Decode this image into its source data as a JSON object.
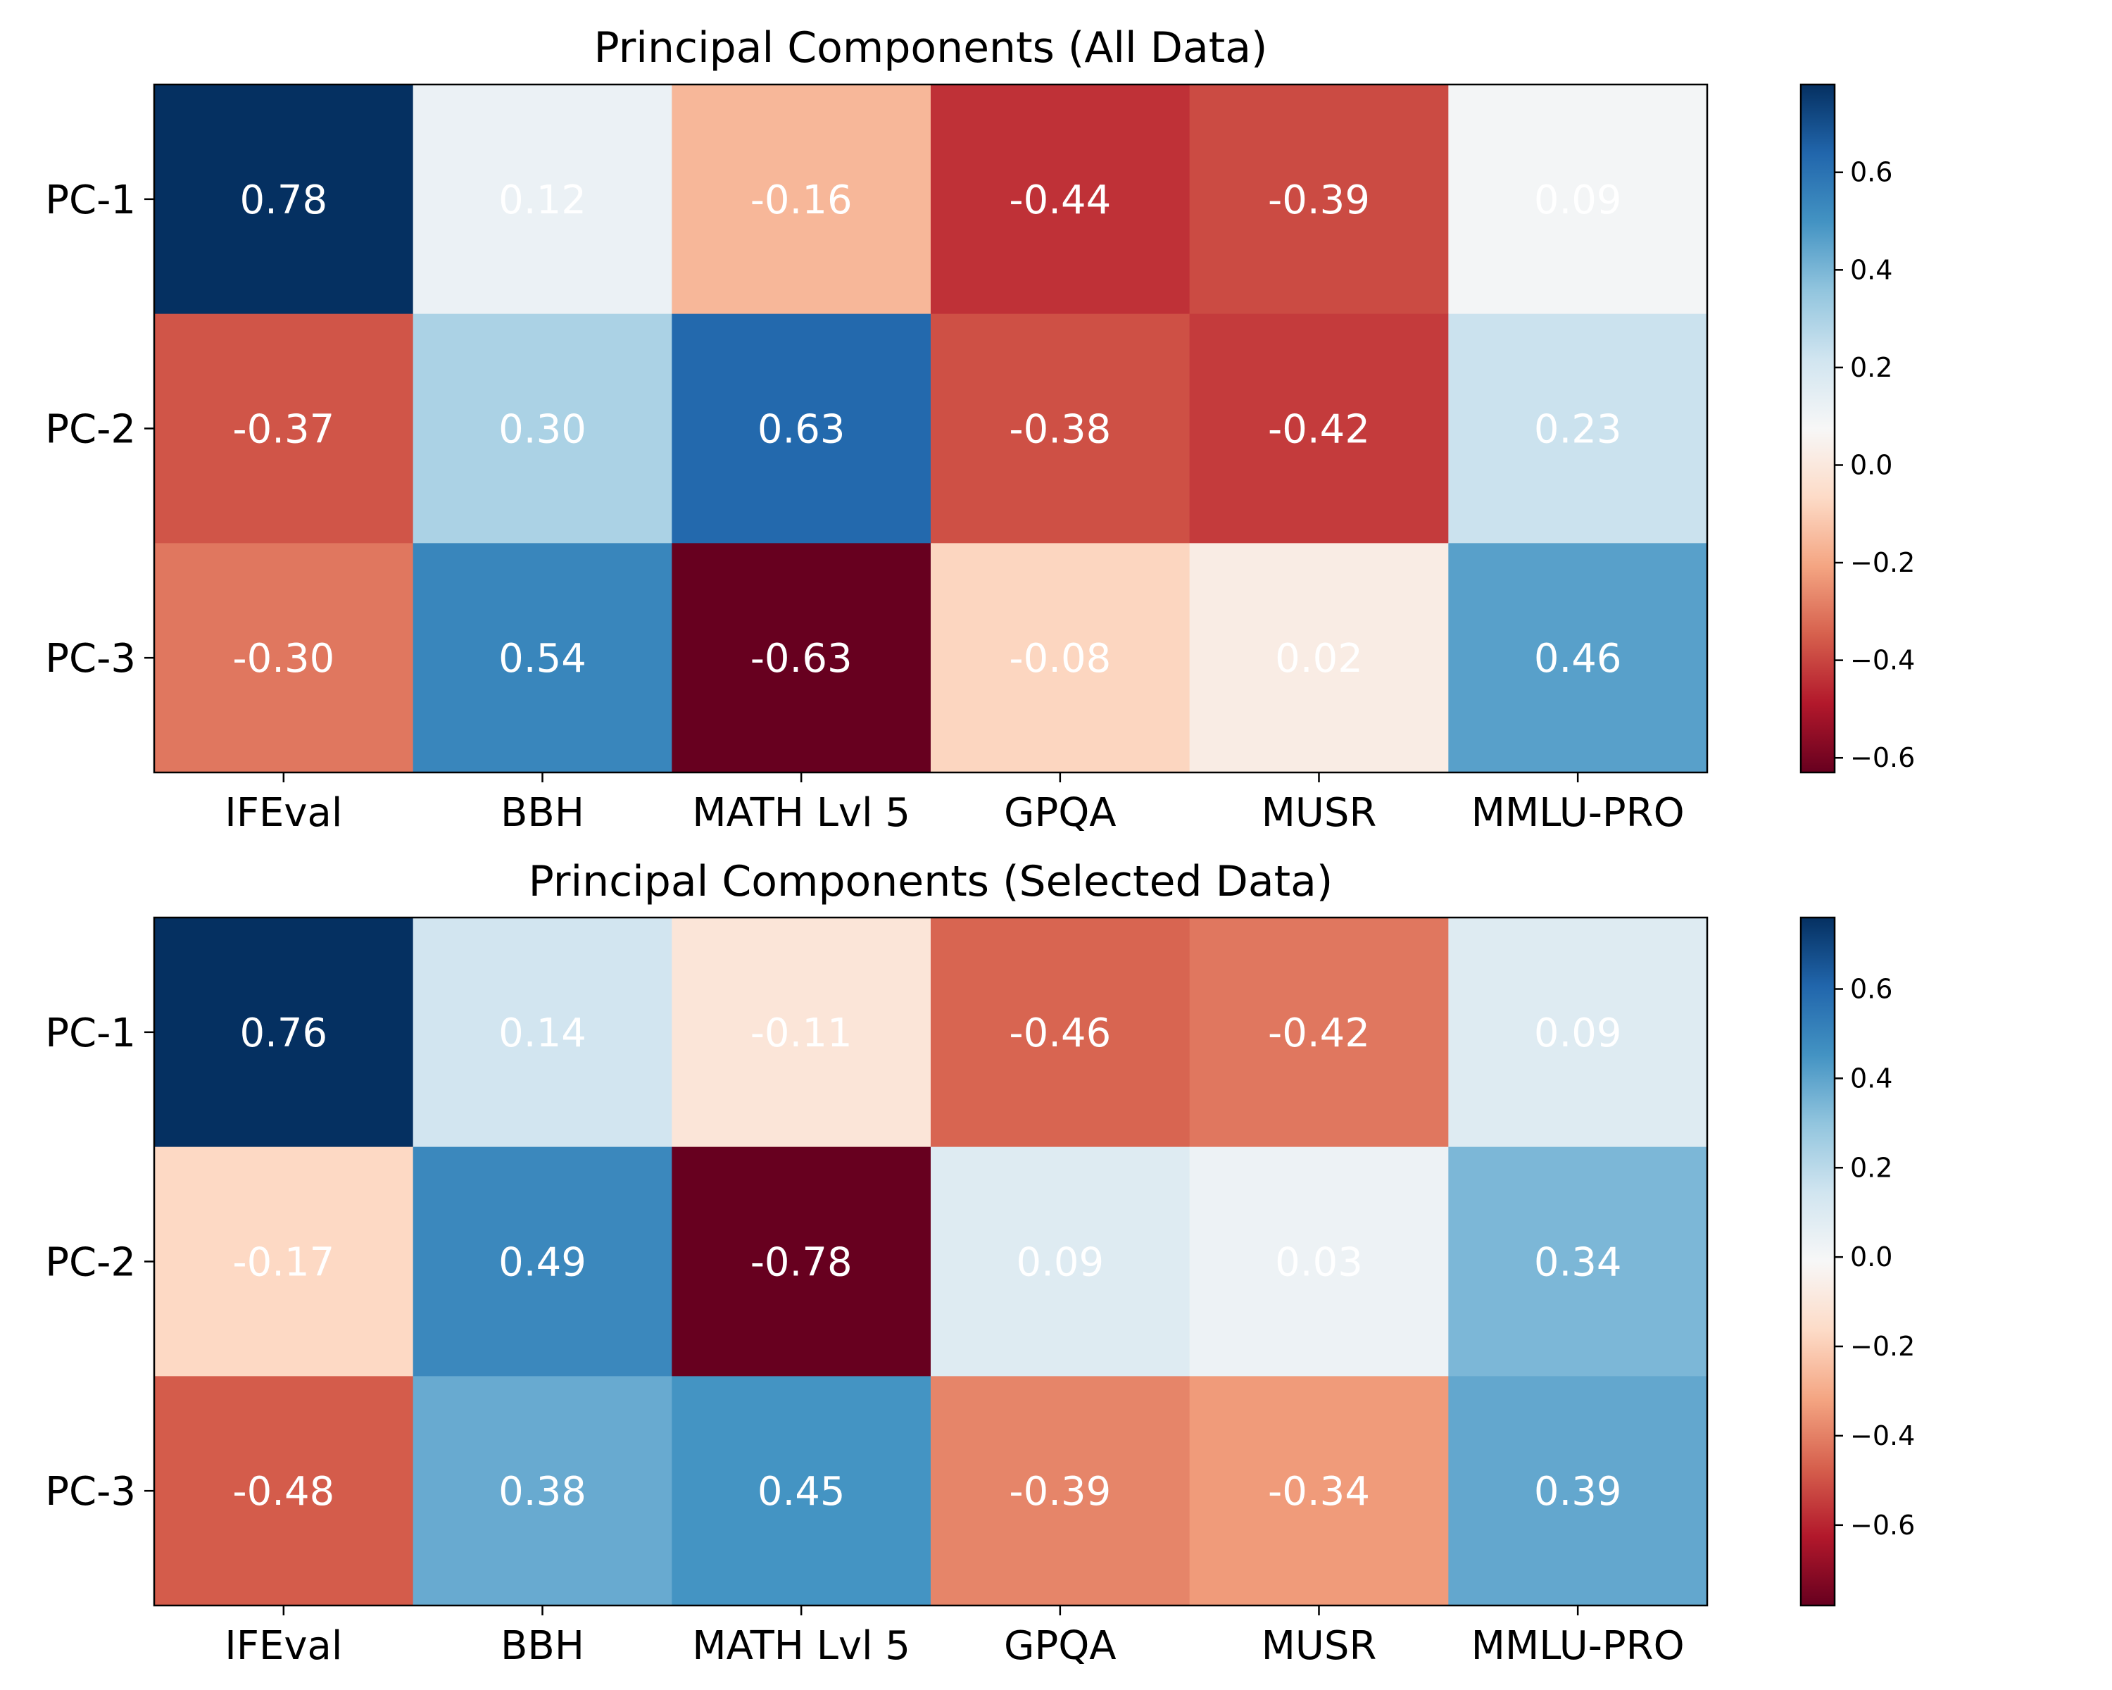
{
  "chart_data": [
    {
      "type": "heatmap",
      "title": "Principal Components (All Data)",
      "x_categories": [
        "IFEval",
        "BBH",
        "MATH Lvl 5",
        "GPQA",
        "MUSR",
        "MMLU-PRO"
      ],
      "y_categories": [
        "PC-1",
        "PC-2",
        "PC-3"
      ],
      "values": [
        [
          0.78,
          0.12,
          -0.16,
          -0.44,
          -0.39,
          0.09
        ],
        [
          -0.37,
          0.3,
          0.63,
          -0.38,
          -0.42,
          0.23
        ],
        [
          -0.3,
          0.54,
          -0.63,
          -0.08,
          0.02,
          0.46
        ]
      ],
      "cell_labels": [
        [
          "0.78",
          "0.12",
          "-0.16",
          "-0.44",
          "-0.39",
          "0.09"
        ],
        [
          "-0.37",
          "0.30",
          "0.63",
          "-0.38",
          "-0.42",
          "0.23"
        ],
        [
          "-0.30",
          "0.54",
          "-0.63",
          "-0.08",
          "0.02",
          "0.46"
        ]
      ],
      "colormap": "RdBu",
      "color_range": [
        -0.63,
        0.78
      ],
      "colorbar_ticks": [
        0.6,
        0.4,
        0.2,
        0.0,
        -0.2,
        -0.4,
        -0.6
      ],
      "colorbar_tick_labels": [
        "0.6",
        "0.4",
        "0.2",
        "0.0",
        "−0.2",
        "−0.4",
        "−0.6"
      ]
    },
    {
      "type": "heatmap",
      "title": "Principal Components (Selected Data)",
      "x_categories": [
        "IFEval",
        "BBH",
        "MATH Lvl 5",
        "GPQA",
        "MUSR",
        "MMLU-PRO"
      ],
      "y_categories": [
        "PC-1",
        "PC-2",
        "PC-3"
      ],
      "values": [
        [
          0.76,
          0.14,
          -0.11,
          -0.46,
          -0.42,
          0.09
        ],
        [
          -0.17,
          0.49,
          -0.78,
          0.09,
          0.03,
          0.34
        ],
        [
          -0.48,
          0.38,
          0.45,
          -0.39,
          -0.34,
          0.39
        ]
      ],
      "cell_labels": [
        [
          "0.76",
          "0.14",
          "-0.11",
          "-0.46",
          "-0.42",
          "0.09"
        ],
        [
          "-0.17",
          "0.49",
          "-0.78",
          "0.09",
          "0.03",
          "0.34"
        ],
        [
          "-0.48",
          "0.38",
          "0.45",
          "-0.39",
          "-0.34",
          "0.39"
        ]
      ],
      "colormap": "RdBu",
      "color_range": [
        -0.78,
        0.76
      ],
      "colorbar_ticks": [
        0.6,
        0.4,
        0.2,
        0.0,
        -0.2,
        -0.4,
        -0.6
      ],
      "colorbar_tick_labels": [
        "0.6",
        "0.4",
        "0.2",
        "0.0",
        "−0.2",
        "−0.4",
        "−0.6"
      ]
    }
  ],
  "colors": {
    "cell_label_text": "#ffffff",
    "axes_edge": "#000000"
  }
}
